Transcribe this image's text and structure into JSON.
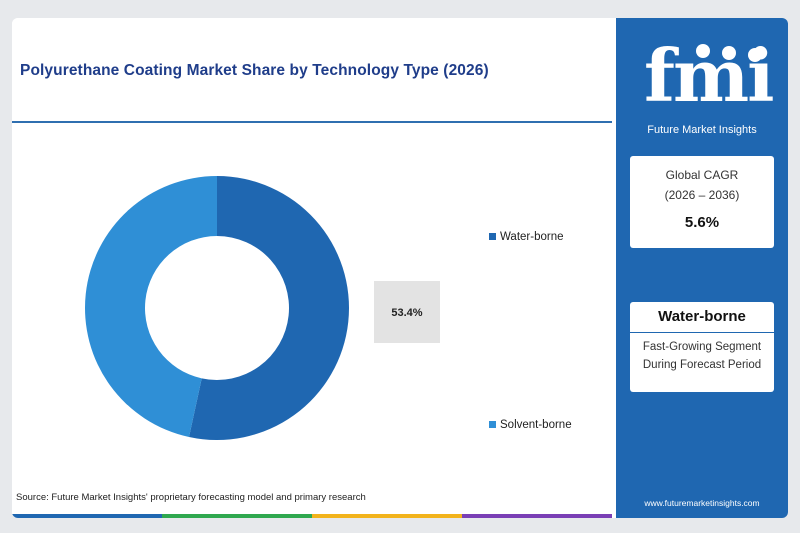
{
  "title": "Polyurethane Coating Market Share by Technology Type (2026)",
  "source": "Source: Future Market Insights' proprietary forecasting model and primary research",
  "chart_data": {
    "type": "pie",
    "donut": true,
    "categories": [
      "Water-borne",
      "Solvent-borne"
    ],
    "values": [
      53.4,
      46.6
    ],
    "colors": [
      "#1f67b1",
      "#2f8fd6"
    ],
    "data_labels": [
      "53.4%"
    ],
    "legend_position": "right"
  },
  "panel": {
    "logo_text": "fmi",
    "logo_subtitle": "Future Market Insights",
    "cagr_label": "Global CAGR",
    "cagr_period": "(2026 – 2036)",
    "cagr_value": "5.6%",
    "segment_title": "Water-borne",
    "segment_line1": "Fast-Growing Segment",
    "segment_line2": "During Forecast Period",
    "url": "www.futuremarketinsights.com"
  },
  "colors": {
    "brand_blue": "#1f67b1",
    "title_blue": "#1f3d8a",
    "label_box": "#e3e3e3"
  },
  "bottom_bar_colors": [
    "#1f67b1",
    "#2fa84f",
    "#f2b31b",
    "#7a3fb5"
  ]
}
